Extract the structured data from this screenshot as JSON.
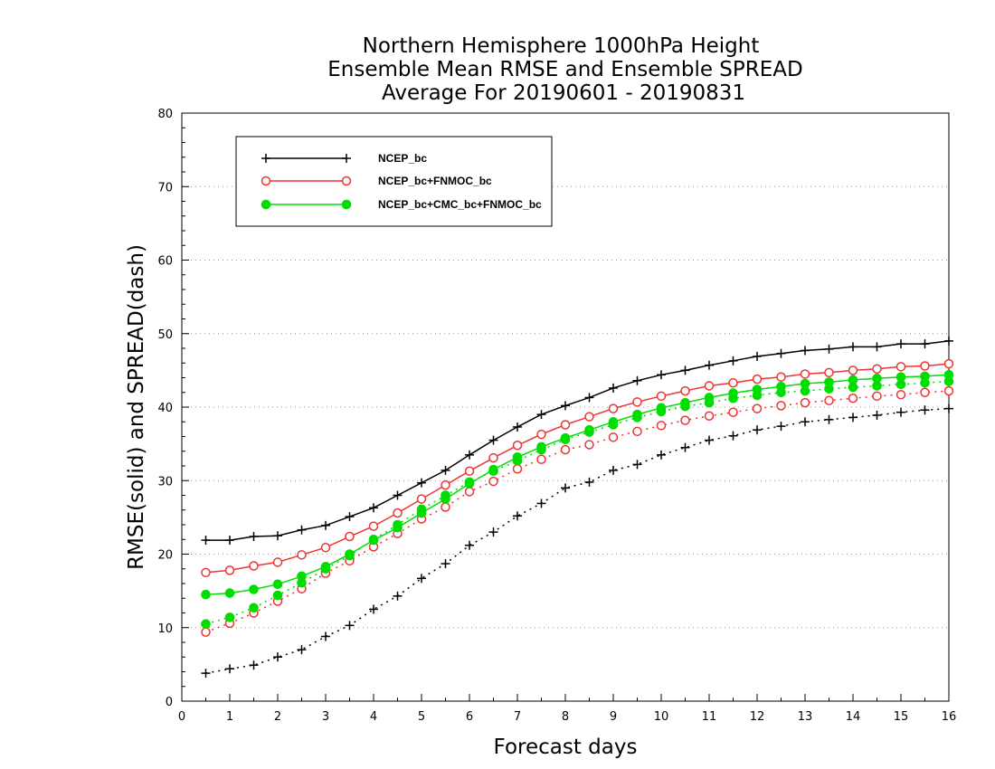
{
  "chart_data": {
    "type": "line",
    "title": [
      "Northern Hemisphere 1000hPa Height",
      "Ensemble Mean RMSE and Ensemble SPREAD",
      "Average For 20190601 - 20190831"
    ],
    "xlabel": "Forecast days",
    "ylabel": "RMSE(solid) and SPREAD(dash)",
    "xlim": [
      0,
      16
    ],
    "ylim": [
      0,
      80
    ],
    "xticks": [
      0,
      1,
      2,
      3,
      4,
      5,
      6,
      7,
      8,
      9,
      10,
      11,
      12,
      13,
      14,
      15,
      16
    ],
    "yticks": [
      0,
      10,
      20,
      30,
      40,
      50,
      60,
      70,
      80
    ],
    "grid": "horizontal dotted",
    "legend_position": "top-left",
    "x": [
      0.5,
      1,
      1.5,
      2,
      2.5,
      3,
      3.5,
      4,
      4.5,
      5,
      5.5,
      6,
      6.5,
      7,
      7.5,
      8,
      8.5,
      9,
      9.5,
      10,
      10.5,
      11,
      11.5,
      12,
      12.5,
      13,
      13.5,
      14,
      14.5,
      15,
      15.5,
      16
    ],
    "series": [
      {
        "name": "NCEP_bc",
        "color": "#000000",
        "marker": "plus",
        "rmse": [
          21.9,
          21.9,
          22.4,
          22.5,
          23.3,
          23.9,
          25.1,
          26.3,
          28.0,
          29.7,
          31.4,
          33.5,
          35.5,
          37.3,
          39.0,
          40.2,
          41.3,
          42.6,
          43.6,
          44.4,
          45.0,
          45.7,
          46.3,
          46.9,
          47.3,
          47.7,
          47.9,
          48.2,
          48.2,
          48.6,
          48.6,
          49.0
        ],
        "spread": [
          3.8,
          4.4,
          4.9,
          6.0,
          7.0,
          8.8,
          10.3,
          12.5,
          14.3,
          16.7,
          18.7,
          21.2,
          23.0,
          25.2,
          26.9,
          29.0,
          29.8,
          31.4,
          32.2,
          33.5,
          34.5,
          35.5,
          36.1,
          36.9,
          37.4,
          38.0,
          38.3,
          38.6,
          38.9,
          39.3,
          39.6,
          39.8
        ]
      },
      {
        "name": "NCEP_bc+FNMOC_bc",
        "color": "#ee3333",
        "marker": "open-circle",
        "rmse": [
          17.5,
          17.8,
          18.4,
          18.9,
          19.9,
          20.9,
          22.4,
          23.8,
          25.6,
          27.5,
          29.4,
          31.3,
          33.1,
          34.8,
          36.3,
          37.6,
          38.7,
          39.8,
          40.7,
          41.5,
          42.2,
          42.9,
          43.3,
          43.8,
          44.1,
          44.5,
          44.7,
          45.0,
          45.2,
          45.5,
          45.6,
          45.9
        ],
        "spread": [
          9.4,
          10.6,
          12.0,
          13.6,
          15.3,
          17.4,
          19.1,
          21.0,
          22.8,
          24.8,
          26.4,
          28.5,
          29.9,
          31.6,
          32.9,
          34.2,
          34.9,
          35.9,
          36.7,
          37.5,
          38.2,
          38.8,
          39.3,
          39.8,
          40.2,
          40.6,
          40.9,
          41.2,
          41.5,
          41.7,
          42.0,
          42.2
        ]
      },
      {
        "name": "NCEP_bc+CMC_bc+FNMOC_bc",
        "color": "#00dd00",
        "marker": "filled-circle",
        "rmse": [
          14.5,
          14.7,
          15.2,
          15.9,
          17.0,
          18.3,
          20.0,
          21.9,
          23.6,
          25.6,
          27.5,
          29.6,
          31.5,
          33.2,
          34.6,
          35.8,
          36.9,
          38.0,
          39.0,
          39.9,
          40.6,
          41.3,
          41.9,
          42.4,
          42.8,
          43.2,
          43.4,
          43.7,
          43.9,
          44.1,
          44.2,
          44.4
        ],
        "spread": [
          10.5,
          11.4,
          12.7,
          14.4,
          16.1,
          18.0,
          19.8,
          22.0,
          24.0,
          26.1,
          28.0,
          29.8,
          31.3,
          32.7,
          34.2,
          35.6,
          36.6,
          37.6,
          38.6,
          39.4,
          40.1,
          40.6,
          41.2,
          41.6,
          42.0,
          42.2,
          42.5,
          42.7,
          42.9,
          43.1,
          43.3,
          43.5
        ]
      }
    ]
  }
}
